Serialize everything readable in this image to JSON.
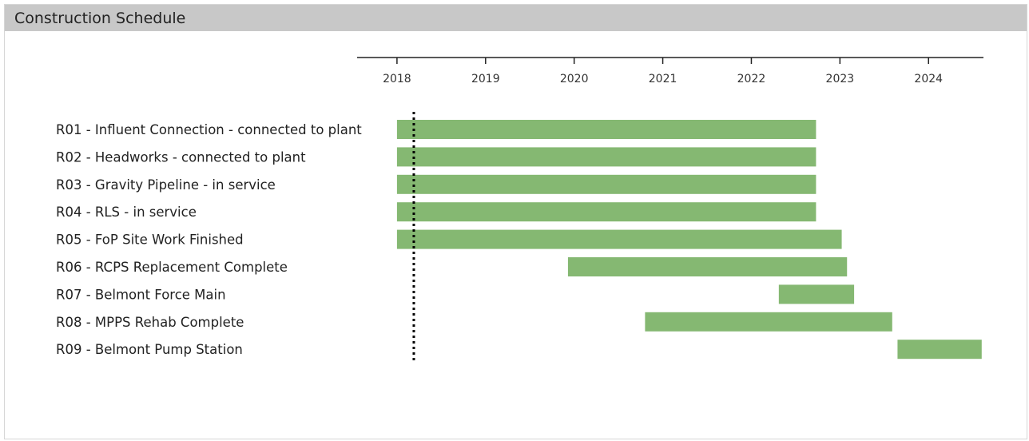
{
  "panel": {
    "title": "Construction Schedule"
  },
  "colors": {
    "bar": "#85b872",
    "axis": "#222222",
    "today_line": "#000000",
    "header_bg": "#c8c8c8"
  },
  "chart_data": {
    "type": "gantt",
    "title": "Construction Schedule",
    "x_axis": {
      "type": "time",
      "range": [
        2017.55,
        2024.62
      ],
      "ticks": [
        "2018",
        "2019",
        "2020",
        "2021",
        "2022",
        "2023",
        "2024"
      ],
      "position": "top"
    },
    "today_marker": 2018.19,
    "grid": false,
    "legend": "none",
    "tasks": [
      {
        "name": "R01 - Influent Connection - connected to plant",
        "start": 2018.0,
        "end": 2022.73
      },
      {
        "name": "R02 - Headworks - connected to plant",
        "start": 2018.0,
        "end": 2022.73
      },
      {
        "name": "R03 - Gravity Pipeline - in service",
        "start": 2018.0,
        "end": 2022.73
      },
      {
        "name": "R04 - RLS - in service",
        "start": 2018.0,
        "end": 2022.73
      },
      {
        "name": "R05 - FoP Site Work Finished",
        "start": 2018.0,
        "end": 2023.02
      },
      {
        "name": "R06 - RCPS Replacement Complete",
        "start": 2019.93,
        "end": 2023.08
      },
      {
        "name": "R07 - Belmont Force Main",
        "start": 2022.31,
        "end": 2023.16
      },
      {
        "name": "R08 - MPPS Rehab Complete",
        "start": 2020.8,
        "end": 2023.59
      },
      {
        "name": "R09 - Belmont Pump Station",
        "start": 2023.65,
        "end": 2024.6
      }
    ]
  }
}
